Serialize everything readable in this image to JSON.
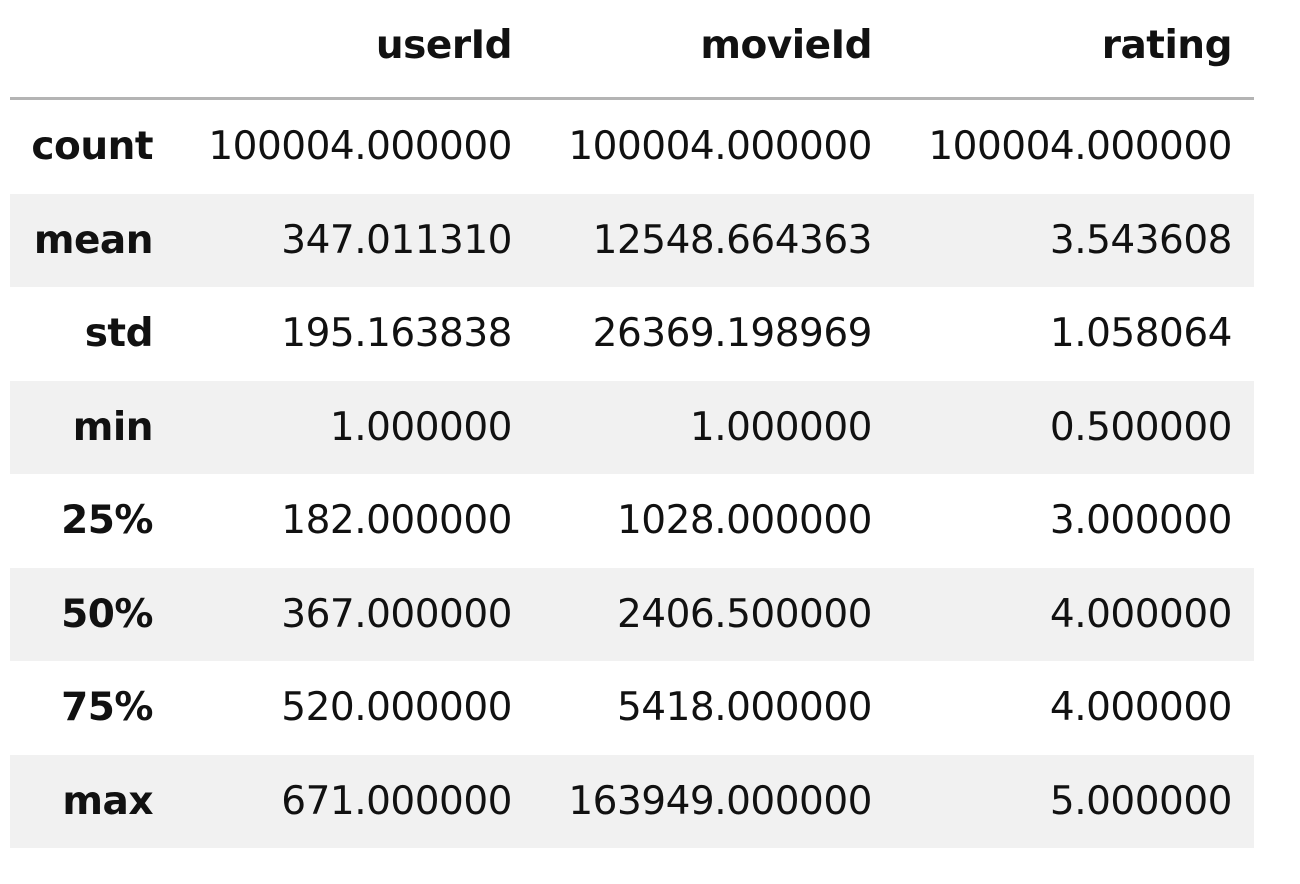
{
  "table": {
    "columns": [
      "userId",
      "movieId",
      "rating"
    ],
    "rows": [
      {
        "label": "count",
        "values": [
          "100004.000000",
          "100004.000000",
          "100004.000000"
        ]
      },
      {
        "label": "mean",
        "values": [
          "347.011310",
          "12548.664363",
          "3.543608"
        ]
      },
      {
        "label": "std",
        "values": [
          "195.163838",
          "26369.198969",
          "1.058064"
        ]
      },
      {
        "label": "min",
        "values": [
          "1.000000",
          "1.000000",
          "0.500000"
        ]
      },
      {
        "label": "25%",
        "values": [
          "182.000000",
          "1028.000000",
          "3.000000"
        ]
      },
      {
        "label": "50%",
        "values": [
          "367.000000",
          "2406.500000",
          "4.000000"
        ]
      },
      {
        "label": "75%",
        "values": [
          "520.000000",
          "5418.000000",
          "4.000000"
        ]
      },
      {
        "label": "max",
        "values": [
          "671.000000",
          "163949.000000",
          "5.000000"
        ]
      }
    ]
  },
  "chart_data": {
    "type": "table",
    "columns": [
      "userId",
      "movieId",
      "rating"
    ],
    "index": [
      "count",
      "mean",
      "std",
      "min",
      "25%",
      "50%",
      "75%",
      "max"
    ],
    "values": [
      [
        100004.0,
        100004.0,
        100004.0
      ],
      [
        347.01131,
        12548.664363,
        3.543608
      ],
      [
        195.163838,
        26369.198969,
        1.058064
      ],
      [
        1.0,
        1.0,
        0.5
      ],
      [
        182.0,
        1028.0,
        3.0
      ],
      [
        367.0,
        2406.5,
        4.0
      ],
      [
        520.0,
        5418.0,
        4.0
      ],
      [
        671.0,
        163949.0,
        5.0
      ]
    ]
  }
}
